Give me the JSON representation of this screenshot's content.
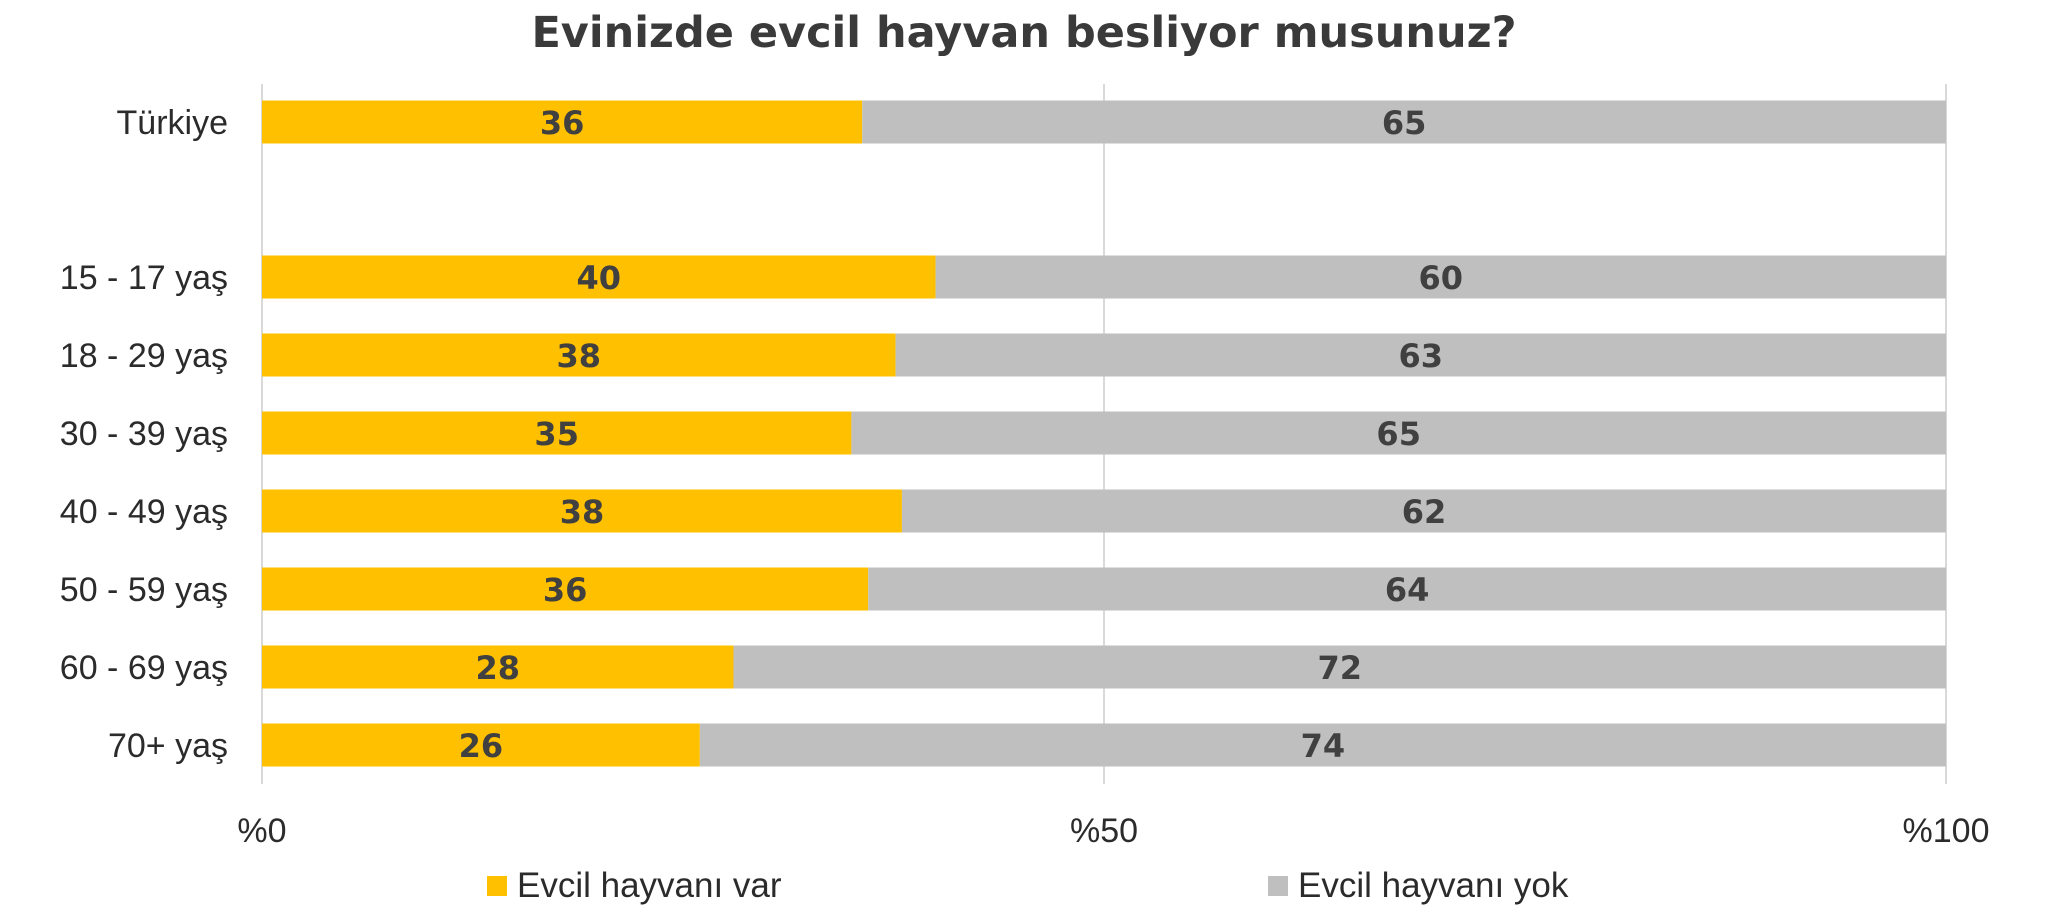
{
  "chart_data": {
    "type": "bar",
    "orientation": "horizontal",
    "stacked": true,
    "title": "Evinizde evcil hayvan besliyor musunuz?",
    "categories": [
      "Türkiye",
      "15 - 17 yaş",
      "18 - 29 yaş",
      "30 - 39 yaş",
      "40 - 49 yaş",
      "50 - 59 yaş",
      "60 - 69 yaş",
      "70+ yaş"
    ],
    "series": [
      {
        "name": "Evcil hayvanı var",
        "color": "#FFC000",
        "values": [
          36,
          40,
          38,
          35,
          38,
          36,
          28,
          26
        ],
        "labels": [
          "36",
          "40",
          "38",
          "35",
          "38",
          "36",
          "28",
          "26"
        ]
      },
      {
        "name": "Evcil hayvanı yok",
        "color": "#BFBFBF",
        "values": [
          65,
          60,
          63,
          65,
          62,
          64,
          72,
          74
        ],
        "labels": [
          "65",
          "60",
          "63",
          "65",
          "62",
          "64",
          "72",
          "74"
        ]
      }
    ],
    "xlim": [
      0,
      100
    ],
    "x_ticks": [
      0,
      50,
      100
    ],
    "x_tick_labels": [
      "%0",
      "%50",
      "%100"
    ],
    "grid": true,
    "legend_position": "bottom",
    "label_color": "#404040"
  }
}
